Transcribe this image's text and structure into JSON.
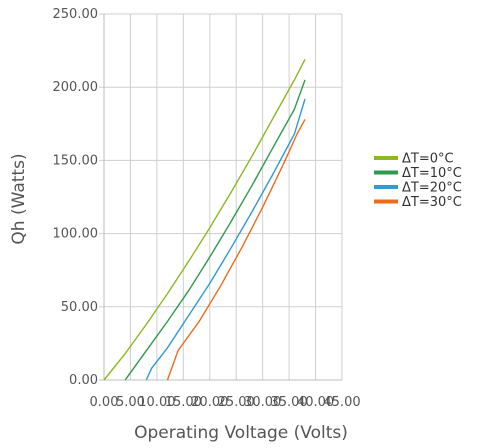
{
  "chart_data": {
    "type": "line",
    "title": "",
    "xlabel": "Operating Voltage (Volts)",
    "ylabel": "Qh (Watts)",
    "xlim": [
      0,
      45
    ],
    "ylim": [
      0,
      250
    ],
    "x_ticks": [
      "0.00",
      "5.00",
      "10.00",
      "15.00",
      "20.00",
      "25.00",
      "30.00",
      "35.00",
      "40.00",
      "45.00"
    ],
    "y_ticks": [
      "0.00",
      "50.00",
      "100.00",
      "150.00",
      "200.00",
      "250.00"
    ],
    "grid": true,
    "legend_position": "right",
    "series": [
      {
        "name": "ΔT=0°C",
        "color": "#8cb820",
        "points": [
          [
            0.0,
            0
          ],
          [
            4.0,
            18
          ],
          [
            8.0,
            38
          ],
          [
            12.0,
            59
          ],
          [
            16.0,
            81
          ],
          [
            20.0,
            104
          ],
          [
            24.0,
            128
          ],
          [
            28.0,
            153
          ],
          [
            32.0,
            179
          ],
          [
            36.0,
            205
          ],
          [
            38.0,
            219
          ]
        ]
      },
      {
        "name": "ΔT=10°C",
        "color": "#2f9a4c",
        "points": [
          [
            4.0,
            0
          ],
          [
            8.0,
            20
          ],
          [
            12.0,
            40
          ],
          [
            16.0,
            61
          ],
          [
            20.0,
            84
          ],
          [
            24.0,
            108
          ],
          [
            28.0,
            133
          ],
          [
            32.0,
            159
          ],
          [
            36.0,
            185
          ],
          [
            38.0,
            205
          ]
        ]
      },
      {
        "name": "ΔT=20°C",
        "color": "#2e9ad6",
        "points": [
          [
            8.0,
            0
          ],
          [
            9.0,
            8
          ],
          [
            12.0,
            22
          ],
          [
            16.0,
            44
          ],
          [
            20.0,
            66
          ],
          [
            24.0,
            90
          ],
          [
            28.0,
            115
          ],
          [
            32.0,
            141
          ],
          [
            36.0,
            168
          ],
          [
            38.0,
            192
          ]
        ]
      },
      {
        "name": "ΔT=30°C",
        "color": "#f06a1c",
        "points": [
          [
            12.0,
            0
          ],
          [
            14.0,
            20
          ],
          [
            18.0,
            40
          ],
          [
            22.0,
            64
          ],
          [
            26.0,
            90
          ],
          [
            30.0,
            118
          ],
          [
            34.0,
            148
          ],
          [
            36.5,
            168
          ],
          [
            38.0,
            178
          ]
        ]
      }
    ]
  }
}
